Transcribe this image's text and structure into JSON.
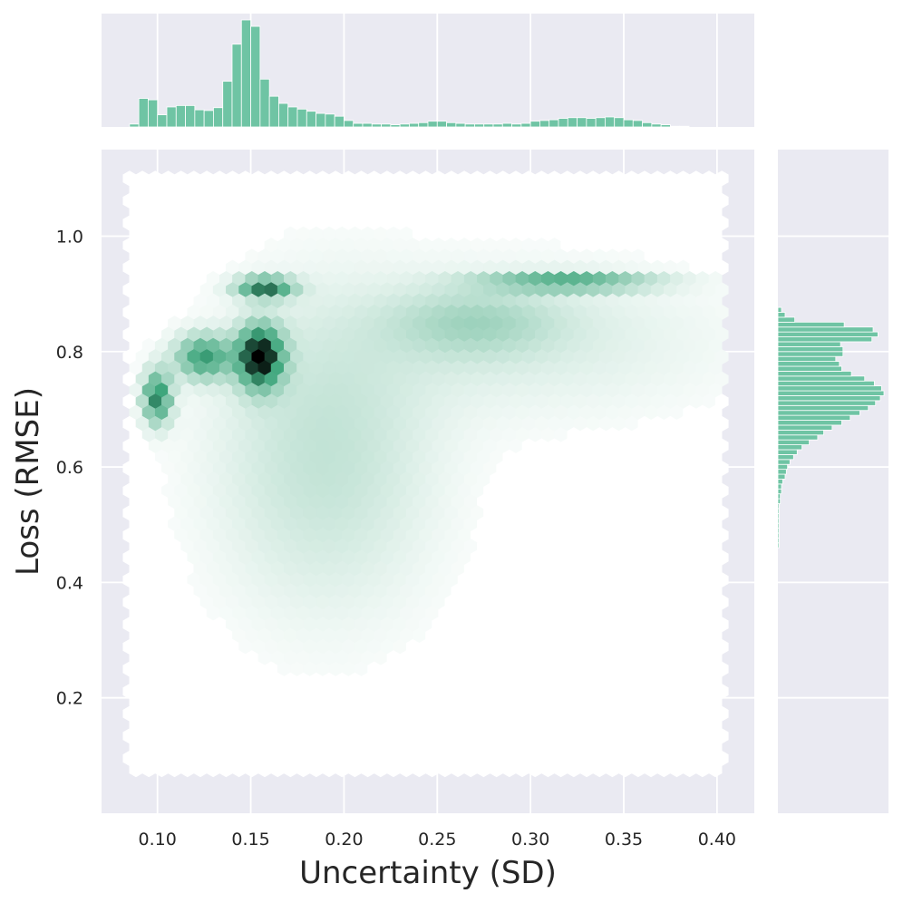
{
  "chart_data": {
    "type": "hexbin",
    "xlabel": "Uncertainty (SD)",
    "ylabel": "Loss (RMSE)",
    "xlim": [
      0.07,
      0.42
    ],
    "ylim": [
      0.0,
      1.15
    ],
    "xticks": [
      0.1,
      0.15,
      0.2,
      0.25,
      0.3,
      0.35,
      0.4
    ],
    "xtick_labels": [
      "0.10",
      "0.15",
      "0.20",
      "0.25",
      "0.30",
      "0.35",
      "0.40"
    ],
    "yticks": [
      0.2,
      0.4,
      0.6,
      0.8,
      1.0
    ],
    "ytick_labels": [
      "0.2",
      "0.4",
      "0.6",
      "0.8",
      "1.0"
    ],
    "grid": true,
    "colors": {
      "background": "#eaeaf2",
      "bars": "#6fc4a4",
      "hex_light": "#f3faf7",
      "hex_mid": "#3ea67c",
      "hex_dark": "#000000"
    },
    "hexbin_extent": {
      "x": [
        0.085,
        0.405
      ],
      "y": [
        0.07,
        1.1
      ]
    },
    "density_clusters": [
      {
        "x": 0.155,
        "y": 0.79,
        "peak": 1.0,
        "sx": 0.008,
        "sy": 0.035
      },
      {
        "x": 0.1,
        "y": 0.72,
        "peak": 0.65,
        "sx": 0.005,
        "sy": 0.03
      },
      {
        "x": 0.125,
        "y": 0.79,
        "peak": 0.55,
        "sx": 0.01,
        "sy": 0.025
      },
      {
        "x": 0.158,
        "y": 0.91,
        "peak": 0.7,
        "sx": 0.01,
        "sy": 0.012
      },
      {
        "x": 0.32,
        "y": 0.92,
        "peak": 0.5,
        "sx": 0.03,
        "sy": 0.01
      },
      {
        "x": 0.27,
        "y": 0.85,
        "peak": 0.18,
        "sx": 0.03,
        "sy": 0.04
      },
      {
        "x": 0.19,
        "y": 0.62,
        "peak": 0.15,
        "sx": 0.04,
        "sy": 0.18
      },
      {
        "x": 0.3,
        "y": 0.82,
        "peak": 0.08,
        "sx": 0.07,
        "sy": 0.09
      }
    ],
    "x_marginal": {
      "bin_start": 0.085,
      "bin_width": 0.005,
      "counts": [
        4,
        40,
        38,
        17,
        28,
        30,
        30,
        24,
        23,
        27,
        64,
        116,
        150,
        141,
        67,
        43,
        33,
        28,
        25,
        22,
        19,
        18,
        15,
        9,
        5,
        5,
        4,
        4,
        3,
        4,
        5,
        6,
        8,
        8,
        6,
        5,
        4,
        4,
        4,
        4,
        5,
        4,
        5,
        8,
        9,
        10,
        12,
        13,
        13,
        12,
        13,
        14,
        13,
        10,
        9,
        6,
        4,
        3,
        1,
        1
      ]
    },
    "y_marginal": {
      "bin_start": 0.46,
      "bin_width": 0.0085,
      "counts": [
        1,
        1,
        1,
        1,
        1,
        1,
        1,
        1,
        1,
        2,
        2,
        3,
        3,
        4,
        6,
        7,
        8,
        10,
        13,
        16,
        20,
        26,
        33,
        38,
        45,
        53,
        60,
        68,
        75,
        81,
        85,
        88,
        86,
        80,
        72,
        61,
        53,
        51,
        48,
        54,
        54,
        52,
        78,
        83,
        79,
        55,
        14,
        6,
        3
      ]
    }
  }
}
